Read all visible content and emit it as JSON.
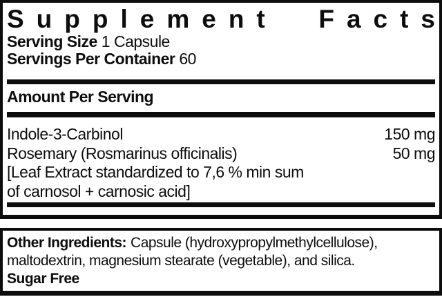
{
  "colors": {
    "ink": "#0d0d0d",
    "background": "#ffffff"
  },
  "panel": {
    "title_left": "Supplement",
    "title_right": "Facts",
    "serving_size_label": "Serving Size",
    "serving_size_value": "1 Capsule",
    "servings_label": "Servings Per Container",
    "servings_value": "60",
    "amount_header": "Amount Per Serving",
    "rows": [
      {
        "name": "Indole-3-Carbinol",
        "amount": "150 mg"
      },
      {
        "name": "Rosemary (Rosmarinus officinalis)",
        "amount": "50 mg"
      }
    ],
    "note_lines": [
      "[Leaf Extract standardized to 7,6 % min sum",
      "of carnosol + carnosic acid]"
    ]
  },
  "other": {
    "label": "Other Ingredients:",
    "line1": "Capsule (hydroxypropylmethylcellulose),",
    "line2": "maltodextrin, magnesium stearate (vegetable), and silica.",
    "sugar_free": "Sugar Free"
  }
}
